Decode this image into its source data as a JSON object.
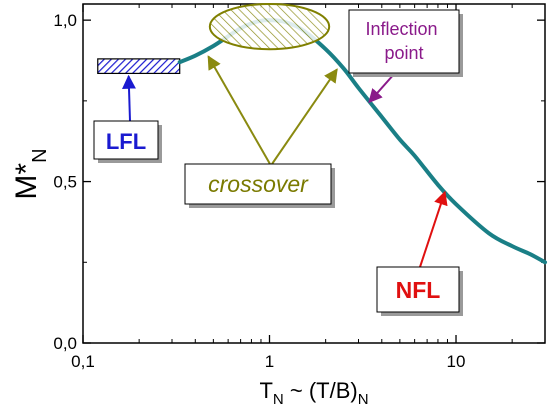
{
  "chart_data": {
    "type": "line",
    "x_scale": "log",
    "xlim": [
      0.1,
      30
    ],
    "ylim": [
      0.0,
      1.05
    ],
    "x_ticks": [
      0.1,
      1,
      10
    ],
    "x_tick_labels": [
      "0,1",
      "1",
      "10"
    ],
    "y_ticks": [
      0.0,
      0.5,
      1.0
    ],
    "y_tick_labels": [
      "0,0",
      "0,5",
      "1,0"
    ],
    "xlabel": {
      "main": "T",
      "sub1": "N",
      "mid": " ~ (T/B)",
      "sub2": "N"
    },
    "ylabel": {
      "main": "M*",
      "sub": "N"
    },
    "series": [
      {
        "color": "#1a7f86",
        "x": [
          0.33,
          0.4,
          0.5,
          0.6,
          0.7,
          0.8,
          0.9,
          1.0,
          1.2,
          1.5,
          2.0,
          2.5,
          3.0,
          4.0,
          5.0,
          6.0,
          8.0,
          10.0,
          15.0,
          20.0,
          25.0,
          30.0
        ],
        "y": [
          0.87,
          0.89,
          0.92,
          0.95,
          0.975,
          0.99,
          0.998,
          1.0,
          0.995,
          0.97,
          0.91,
          0.85,
          0.79,
          0.7,
          0.63,
          0.58,
          0.49,
          0.43,
          0.34,
          0.3,
          0.275,
          0.25
        ]
      }
    ],
    "lfl_box": {
      "x": [
        0.12,
        0.33
      ],
      "y": [
        0.835,
        0.88
      ]
    },
    "crossover_ellipse": {
      "cx": 1.0,
      "cy": 0.98,
      "rx_decades": 0.32,
      "ry": 0.07
    },
    "annotations": [
      {
        "id": "lfl",
        "text": "LFL",
        "color": "#1a1ad0",
        "arrow_color": "#1a1ad0",
        "target": [
          0.18,
          0.845
        ]
      },
      {
        "id": "crossover",
        "text": "crossover",
        "color": "#7a7a00",
        "arrow_color": "#8a8a10",
        "targets": [
          [
            0.47,
            0.9
          ],
          [
            2.3,
            0.86
          ]
        ]
      },
      {
        "id": "inflection",
        "text": "Inflection point",
        "color": "#8a1a8a",
        "arrow_color": "#8a1a8a",
        "target": [
          3.3,
          0.74
        ]
      },
      {
        "id": "nfl",
        "text": "NFL",
        "color": "#e01010",
        "arrow_color": "#e01010",
        "target": [
          8.5,
          0.48
        ]
      }
    ]
  }
}
